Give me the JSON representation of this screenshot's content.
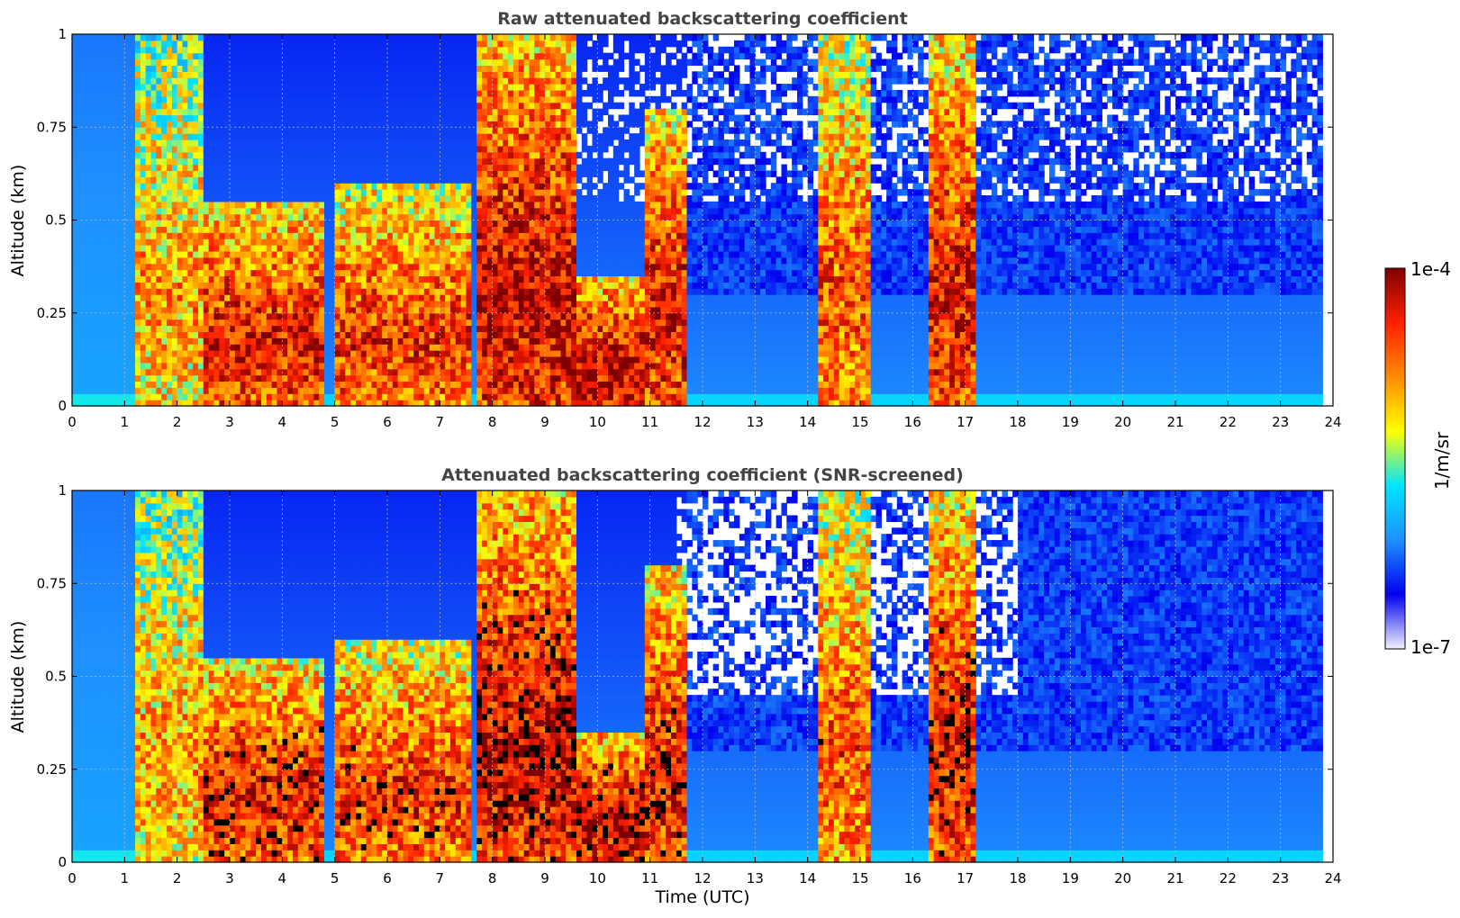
{
  "colors": {
    "colormap": [
      "#f2f2ff",
      "#0000ee",
      "#1e90ff",
      "#00e5ff",
      "#ffff00",
      "#ff8c00",
      "#ff2000",
      "#7f0000"
    ],
    "grid": "#bbbbbb",
    "title": "#444444"
  },
  "chart_data": [
    {
      "type": "heatmap",
      "title": "Raw attenuated backscattering coefficient",
      "xlabel": "",
      "ylabel": "Altitude (km)",
      "xlim": [
        0,
        24
      ],
      "ylim": [
        0,
        1
      ],
      "xticks": [
        "0",
        "1",
        "2",
        "3",
        "4",
        "5",
        "6",
        "7",
        "8",
        "9",
        "10",
        "11",
        "12",
        "13",
        "14",
        "15",
        "16",
        "17",
        "18",
        "19",
        "20",
        "21",
        "22",
        "23",
        "24"
      ],
      "yticks": [
        "0",
        "0.25",
        "0.5",
        "0.75",
        "1"
      ],
      "grid": true,
      "cloud_episodes": [
        {
          "start": 1.2,
          "end": 2.5,
          "top": 1.0,
          "level": 0.7
        },
        {
          "start": 2.5,
          "end": 4.8,
          "top": 0.55,
          "level": 0.9
        },
        {
          "start": 5.0,
          "end": 7.6,
          "top": 0.6,
          "level": 0.85
        },
        {
          "start": 7.7,
          "end": 9.6,
          "top": 1.0,
          "level": 0.95
        },
        {
          "start": 9.6,
          "end": 10.9,
          "top": 0.35,
          "level": 0.95
        },
        {
          "start": 10.9,
          "end": 11.7,
          "top": 0.8,
          "level": 0.9
        },
        {
          "start": 14.2,
          "end": 15.2,
          "top": 1.0,
          "level": 0.8
        },
        {
          "start": 16.3,
          "end": 17.2,
          "top": 1.0,
          "level": 0.9
        }
      ]
    },
    {
      "type": "heatmap",
      "title": "Attenuated backscattering coefficient (SNR-screened)",
      "xlabel": "Time (UTC)",
      "ylabel": "Altitude (km)",
      "xlim": [
        0,
        24
      ],
      "ylim": [
        0,
        1
      ],
      "xticks": [
        "0",
        "1",
        "2",
        "3",
        "4",
        "5",
        "6",
        "7",
        "8",
        "9",
        "10",
        "11",
        "12",
        "13",
        "14",
        "15",
        "16",
        "17",
        "18",
        "19",
        "20",
        "21",
        "22",
        "23",
        "24"
      ],
      "yticks": [
        "0",
        "0.25",
        "0.5",
        "0.75",
        "1"
      ],
      "grid": true,
      "screened": true,
      "cloud_episodes": [
        {
          "start": 1.2,
          "end": 2.5,
          "top": 1.0,
          "level": 0.7
        },
        {
          "start": 2.5,
          "end": 4.8,
          "top": 0.55,
          "level": 0.9
        },
        {
          "start": 5.0,
          "end": 7.6,
          "top": 0.6,
          "level": 0.85
        },
        {
          "start": 7.7,
          "end": 9.6,
          "top": 1.0,
          "level": 0.95
        },
        {
          "start": 9.6,
          "end": 10.9,
          "top": 0.35,
          "level": 0.95
        },
        {
          "start": 10.9,
          "end": 11.7,
          "top": 0.8,
          "level": 0.9
        },
        {
          "start": 14.2,
          "end": 15.2,
          "top": 1.0,
          "level": 0.8
        },
        {
          "start": 16.3,
          "end": 17.2,
          "top": 1.0,
          "level": 0.9
        }
      ]
    }
  ],
  "colorbar": {
    "label": "1/m/sr",
    "max_label": "1e-4",
    "min_label": "1e-7",
    "range": [
      1e-07,
      0.0001
    ],
    "scale": "log"
  }
}
